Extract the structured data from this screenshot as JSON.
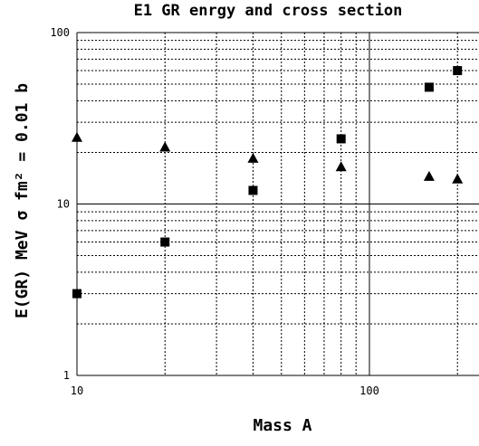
{
  "chart_data": {
    "type": "scatter",
    "title": "E1 GR enrgy and cross section",
    "xlabel": "Mass A",
    "ylabel": "E(GR) MeV   σ fm² = 0.01 b",
    "x_scale": "log",
    "y_scale": "log",
    "xlim": [
      10,
      200
    ],
    "ylim": [
      1,
      100
    ],
    "grid": true,
    "x_ticks": [
      {
        "value": 10,
        "label": "10"
      },
      {
        "value": 100,
        "label": "100"
      }
    ],
    "y_ticks": [
      {
        "value": 1,
        "label": "1"
      },
      {
        "value": 10,
        "label": "10"
      },
      {
        "value": 100,
        "label": "100"
      }
    ],
    "series": [
      {
        "marker": "triangle",
        "color": "#000000",
        "points": [
          {
            "x": 10,
            "y": 24.5
          },
          {
            "x": 20,
            "y": 21.5
          },
          {
            "x": 40,
            "y": 18.5
          },
          {
            "x": 80,
            "y": 16.5
          },
          {
            "x": 160,
            "y": 14.5
          },
          {
            "x": 200,
            "y": 14
          }
        ]
      },
      {
        "marker": "square",
        "color": "#000000",
        "points": [
          {
            "x": 10,
            "y": 3
          },
          {
            "x": 20,
            "y": 6
          },
          {
            "x": 40,
            "y": 12
          },
          {
            "x": 80,
            "y": 24
          },
          {
            "x": 160,
            "y": 48
          },
          {
            "x": 200,
            "y": 60
          }
        ]
      }
    ]
  }
}
